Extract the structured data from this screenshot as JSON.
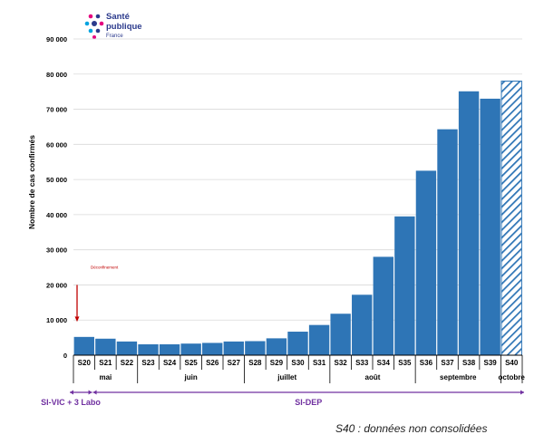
{
  "logo": {
    "line1": "Santé",
    "line2": "publique",
    "line3": "France"
  },
  "chart_data": {
    "type": "bar",
    "ylabel": "Nombre de cas confirmés",
    "ylim": [
      0,
      90000
    ],
    "yticks": [
      0,
      10000,
      20000,
      30000,
      40000,
      50000,
      60000,
      70000,
      80000,
      90000
    ],
    "ytick_labels": [
      "0",
      "10 000",
      "20 000",
      "30 000",
      "40 000",
      "50 000",
      "60 000",
      "70 000",
      "80 000",
      "90 000"
    ],
    "categories": [
      "S20",
      "S21",
      "S22",
      "S23",
      "S24",
      "S25",
      "S26",
      "S27",
      "S28",
      "S29",
      "S30",
      "S31",
      "S32",
      "S33",
      "S34",
      "S35",
      "S36",
      "S37",
      "S38",
      "S39",
      "S40"
    ],
    "values": [
      5200,
      4700,
      3900,
      3100,
      3100,
      3300,
      3500,
      3900,
      4000,
      4800,
      6700,
      8600,
      11800,
      17200,
      28000,
      39500,
      52500,
      64300,
      75100,
      73000,
      78000
    ],
    "hatched_categories": [
      "S40"
    ],
    "bar_color": "#2e75b6",
    "months": [
      {
        "label": "mai",
        "start": 0,
        "end": 2
      },
      {
        "label": "juin",
        "start": 3,
        "end": 7
      },
      {
        "label": "juillet",
        "start": 8,
        "end": 11
      },
      {
        "label": "août",
        "start": 12,
        "end": 15
      },
      {
        "label": "septembre",
        "start": 16,
        "end": 19
      },
      {
        "label": "octobre",
        "start": 20,
        "end": 20
      }
    ],
    "annotation": {
      "text": "Déconfinement",
      "at_category": "S20"
    },
    "systems": [
      {
        "label": "SI-VIC + 3 Labo",
        "start": 0,
        "end": 0
      },
      {
        "label": "SI-DEP",
        "start": 1,
        "end": 20
      }
    ],
    "system_color": "#7030a0",
    "footnote": "S40 : données non consolidées"
  }
}
